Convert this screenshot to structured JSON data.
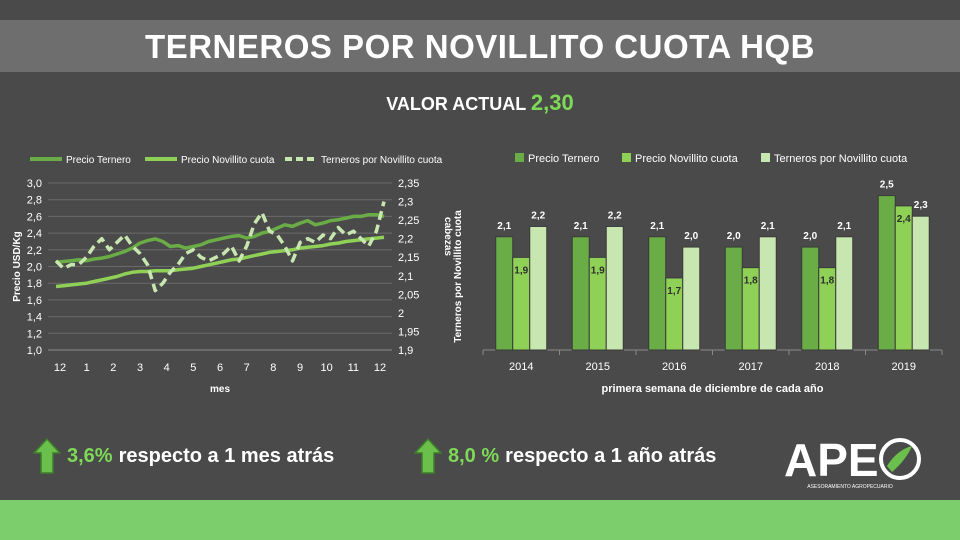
{
  "page": {
    "title": "TERNEROS POR NOVILLITO CUOTA HQB",
    "current_label": "VALOR ACTUAL",
    "current_value": "2,30"
  },
  "stats": [
    {
      "pct": "3,6%",
      "text": "respecto a 1 mes atrás"
    },
    {
      "pct": "8,0 %",
      "text": "respecto a 1 año atrás"
    }
  ],
  "logo": {
    "text": "APE",
    "subtitle": "ASESORAMIENTO AGROPECUARIO"
  },
  "colors": {
    "accent": "#7ed957",
    "ternero": "#6aac46",
    "novillito": "#8fd156",
    "ratio": "#c8e6b0",
    "footer": "#7ccd6c"
  },
  "chart_data": [
    {
      "type": "line",
      "legend": [
        "Precio Ternero",
        "Precio Novillito cuota",
        "Terneros por Novillito cuota"
      ],
      "x_ticks": [
        "12",
        "1",
        "2",
        "3",
        "4",
        "5",
        "6",
        "7",
        "8",
        "9",
        "10",
        "11",
        "12"
      ],
      "xlabel": "mes",
      "ylabel_left": "Precio USD/Kg",
      "ylabel_right": "cabezas",
      "ylabel_right_outer": "Terneros por Novillito cuota",
      "y_left_ticks": [
        "1,0",
        "1,2",
        "1,4",
        "1,6",
        "1,8",
        "2,0",
        "2,2",
        "2,4",
        "2,6",
        "2,8",
        "3,0"
      ],
      "y_right_ticks": [
        "1,9",
        "1,95",
        "2",
        "2,05",
        "2,1",
        "2,15",
        "2,2",
        "2,25",
        "2,3",
        "2,35"
      ],
      "ylim_left": [
        1.0,
        3.0
      ],
      "ylim_right": [
        1.9,
        2.35
      ],
      "grid": true,
      "series": [
        {
          "name": "Precio Ternero",
          "axis": "left",
          "style": "solid",
          "values": [
            2.05,
            2.06,
            2.07,
            2.08,
            2.07,
            2.09,
            2.1,
            2.12,
            2.15,
            2.18,
            2.22,
            2.28,
            2.31,
            2.33,
            2.3,
            2.24,
            2.25,
            2.22,
            2.24,
            2.26,
            2.3,
            2.32,
            2.34,
            2.36,
            2.37,
            2.34,
            2.36,
            2.4,
            2.42,
            2.46,
            2.5,
            2.48,
            2.52,
            2.55,
            2.5,
            2.52,
            2.55,
            2.56,
            2.58,
            2.6,
            2.6,
            2.62,
            2.62,
            2.6
          ]
        },
        {
          "name": "Precio Novillito cuota",
          "axis": "left",
          "style": "solid",
          "values": [
            1.76,
            1.77,
            1.78,
            1.79,
            1.8,
            1.82,
            1.84,
            1.86,
            1.88,
            1.91,
            1.93,
            1.94,
            1.94,
            1.95,
            1.95,
            1.95,
            1.96,
            1.97,
            1.98,
            2.0,
            2.02,
            2.04,
            2.06,
            2.08,
            2.09,
            2.11,
            2.13,
            2.15,
            2.17,
            2.18,
            2.19,
            2.2,
            2.22,
            2.23,
            2.24,
            2.25,
            2.27,
            2.28,
            2.3,
            2.31,
            2.32,
            2.33,
            2.34,
            2.35
          ]
        },
        {
          "name": "Terneros por Novillito cuota",
          "axis": "right",
          "style": "dashed",
          "values": [
            2.14,
            2.12,
            2.13,
            2.13,
            2.15,
            2.18,
            2.2,
            2.17,
            2.19,
            2.21,
            2.18,
            2.16,
            2.13,
            2.06,
            2.08,
            2.11,
            2.13,
            2.16,
            2.17,
            2.15,
            2.14,
            2.15,
            2.16,
            2.18,
            2.14,
            2.18,
            2.24,
            2.27,
            2.22,
            2.21,
            2.18,
            2.14,
            2.19,
            2.2,
            2.19,
            2.21,
            2.2,
            2.23,
            2.21,
            2.22,
            2.2,
            2.18,
            2.22,
            2.3
          ]
        }
      ]
    },
    {
      "type": "bar",
      "categories": [
        "2014",
        "2015",
        "2016",
        "2017",
        "2018",
        "2019"
      ],
      "xlabel": "primera semana de diciembre de cada año",
      "ylim": [
        1.0,
        2.7
      ],
      "series": [
        {
          "name": "Precio Ternero",
          "values": [
            2.1,
            2.1,
            2.1,
            2.0,
            2.0,
            2.5
          ],
          "labels": [
            "2,1",
            "2,1",
            "2,1",
            "2,0",
            "2,0",
            "2,5"
          ]
        },
        {
          "name": "Precio Novillito cuota",
          "values": [
            1.9,
            1.9,
            1.7,
            1.8,
            1.8,
            2.4
          ],
          "labels": [
            "1,9",
            "1,9",
            "1,7",
            "1,8",
            "1,8",
            "2,4"
          ]
        },
        {
          "name": "Terneros por Novillito cuota",
          "values": [
            2.2,
            2.2,
            2.0,
            2.1,
            2.1,
            2.3
          ],
          "labels": [
            "2,2",
            "2,2",
            "2,0",
            "2,1",
            "2,1",
            "2,3"
          ]
        }
      ]
    }
  ]
}
